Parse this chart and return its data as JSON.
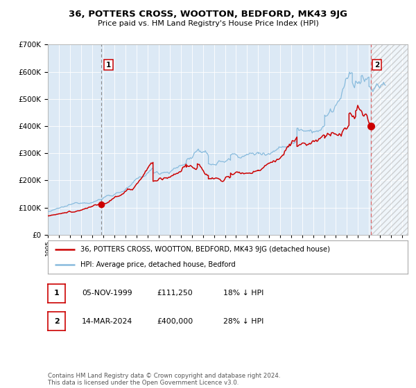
{
  "title": "36, POTTERS CROSS, WOOTTON, BEDFORD, MK43 9JG",
  "subtitle": "Price paid vs. HM Land Registry's House Price Index (HPI)",
  "legend_entry1": "36, POTTERS CROSS, WOOTTON, BEDFORD, MK43 9JG (detached house)",
  "legend_entry2": "HPI: Average price, detached house, Bedford",
  "annotation1_date": "05-NOV-1999",
  "annotation1_price": "£111,250",
  "annotation1_hpi": "18% ↓ HPI",
  "annotation2_date": "14-MAR-2024",
  "annotation2_price": "£400,000",
  "annotation2_hpi": "28% ↓ HPI",
  "footer": "Contains HM Land Registry data © Crown copyright and database right 2024.\nThis data is licensed under the Open Government Licence v3.0.",
  "bg_color": "#dce9f5",
  "red_line_color": "#cc0000",
  "blue_line_color": "#88bbdd",
  "vline1_color": "#888888",
  "vline2_color": "#cc0000",
  "marker_color": "#cc0000",
  "ylim": [
    0,
    700000
  ],
  "xlim_start": 1995.0,
  "xlim_end": 2027.5,
  "sale1_year": 1999.84,
  "sale1_value": 111250,
  "sale2_year": 2024.2,
  "sale2_value": 400000,
  "hatch_start": 2024.2,
  "hatch_end": 2027.5
}
